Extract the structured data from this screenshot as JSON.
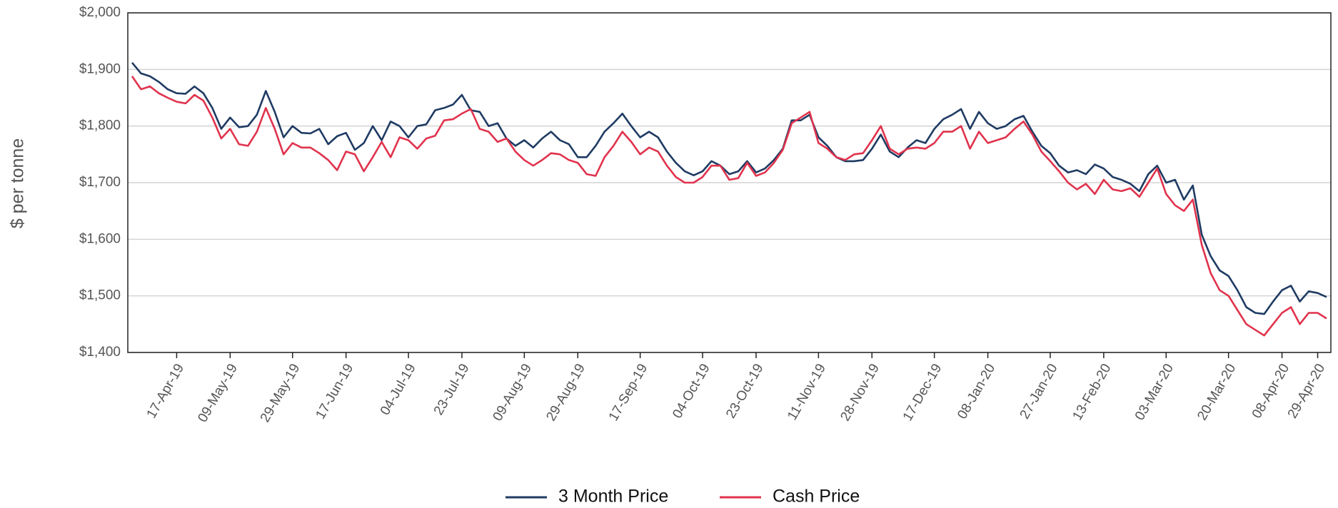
{
  "chart_data": {
    "type": "line",
    "ylabel": "$ per tonne",
    "categories": [
      null,
      null,
      null,
      null,
      null,
      "17-Apr-19",
      null,
      null,
      null,
      null,
      null,
      "09-May-19",
      null,
      null,
      null,
      null,
      null,
      null,
      "29-May-19",
      null,
      null,
      null,
      null,
      null,
      "17-Jun-19",
      null,
      null,
      null,
      null,
      null,
      null,
      "04-Jul-19",
      null,
      null,
      null,
      null,
      null,
      "23-Jul-19",
      null,
      null,
      null,
      null,
      null,
      null,
      "09-Aug-19",
      null,
      null,
      null,
      null,
      null,
      "29-Aug-19",
      null,
      null,
      null,
      null,
      null,
      null,
      "17-Sep-19",
      null,
      null,
      null,
      null,
      null,
      null,
      "04-Oct-19",
      null,
      null,
      null,
      null,
      null,
      "23-Oct-19",
      null,
      null,
      null,
      null,
      null,
      null,
      "11-Nov-19",
      null,
      null,
      null,
      null,
      null,
      "28-Nov-19",
      null,
      null,
      null,
      null,
      null,
      null,
      "17-Dec-19",
      null,
      null,
      null,
      null,
      null,
      "08-Jan-20",
      null,
      null,
      null,
      null,
      null,
      null,
      "27-Jan-20",
      null,
      null,
      null,
      null,
      null,
      "13-Feb-20",
      null,
      null,
      null,
      null,
      null,
      null,
      "03-Mar-20",
      null,
      null,
      null,
      null,
      null,
      null,
      "20-Mar-20",
      null,
      null,
      null,
      null,
      null,
      "08-Apr-20",
      null,
      null,
      null,
      "29-Apr-20",
      null
    ],
    "series": [
      {
        "name": "3 Month Price",
        "color": "#1f3b63",
        "values": [
          1912,
          1893,
          1888,
          1878,
          1865,
          1858,
          1857,
          1870,
          1858,
          1832,
          1795,
          1815,
          1798,
          1800,
          1820,
          1862,
          1825,
          1780,
          1800,
          1788,
          1787,
          1795,
          1768,
          1782,
          1788,
          1758,
          1770,
          1800,
          1775,
          1808,
          1800,
          1780,
          1800,
          1803,
          1828,
          1832,
          1838,
          1855,
          1828,
          1825,
          1800,
          1805,
          1778,
          1765,
          1775,
          1762,
          1778,
          1790,
          1775,
          1768,
          1745,
          1745,
          1765,
          1790,
          1805,
          1822,
          1800,
          1780,
          1790,
          1780,
          1755,
          1735,
          1720,
          1713,
          1720,
          1738,
          1730,
          1715,
          1720,
          1738,
          1718,
          1725,
          1740,
          1760,
          1810,
          1810,
          1820,
          1780,
          1765,
          1745,
          1738,
          1738,
          1740,
          1760,
          1785,
          1755,
          1745,
          1762,
          1775,
          1770,
          1795,
          1812,
          1820,
          1830,
          1795,
          1825,
          1805,
          1795,
          1800,
          1812,
          1818,
          1790,
          1765,
          1752,
          1730,
          1718,
          1722,
          1715,
          1732,
          1725,
          1710,
          1705,
          1698,
          1685,
          1715,
          1730,
          1700,
          1705,
          1670,
          1695,
          1608,
          1570,
          1545,
          1535,
          1510,
          1480,
          1470,
          1468,
          1490,
          1510,
          1518,
          1490,
          1508,
          1505,
          1498
        ]
      },
      {
        "name": "Cash Price",
        "color": "#e0334d",
        "values": [
          1888,
          1865,
          1870,
          1858,
          1850,
          1843,
          1840,
          1855,
          1845,
          1815,
          1778,
          1795,
          1768,
          1765,
          1790,
          1832,
          1795,
          1750,
          1770,
          1762,
          1762,
          1752,
          1740,
          1722,
          1755,
          1750,
          1720,
          1745,
          1772,
          1745,
          1780,
          1775,
          1760,
          1778,
          1783,
          1810,
          1812,
          1822,
          1830,
          1795,
          1790,
          1772,
          1778,
          1755,
          1740,
          1730,
          1740,
          1752,
          1750,
          1740,
          1735,
          1715,
          1712,
          1745,
          1765,
          1790,
          1772,
          1750,
          1762,
          1755,
          1730,
          1710,
          1700,
          1700,
          1710,
          1730,
          1730,
          1705,
          1708,
          1735,
          1712,
          1718,
          1735,
          1758,
          1805,
          1815,
          1825,
          1770,
          1760,
          1745,
          1740,
          1750,
          1752,
          1775,
          1800,
          1760,
          1750,
          1760,
          1762,
          1760,
          1770,
          1790,
          1790,
          1800,
          1760,
          1790,
          1770,
          1775,
          1780,
          1795,
          1808,
          1785,
          1755,
          1738,
          1720,
          1700,
          1688,
          1698,
          1680,
          1705,
          1688,
          1685,
          1690,
          1675,
          1700,
          1725,
          1680,
          1660,
          1650,
          1670,
          1590,
          1540,
          1510,
          1500,
          1475,
          1450,
          1440,
          1430,
          1450,
          1470,
          1480,
          1450,
          1470,
          1470,
          1460
        ]
      }
    ],
    "ylim": [
      1400,
      2000
    ],
    "yticks": [
      {
        "value": 1400,
        "label": "$1,400"
      },
      {
        "value": 1500,
        "label": "$1,500"
      },
      {
        "value": 1600,
        "label": "$1,600"
      },
      {
        "value": 1700,
        "label": "$1,700"
      },
      {
        "value": 1800,
        "label": "$1,800"
      },
      {
        "value": 1900,
        "label": "$1,900"
      },
      {
        "value": 2000,
        "label": "$2,000"
      }
    ],
    "grid": true,
    "legend": "bottom"
  }
}
